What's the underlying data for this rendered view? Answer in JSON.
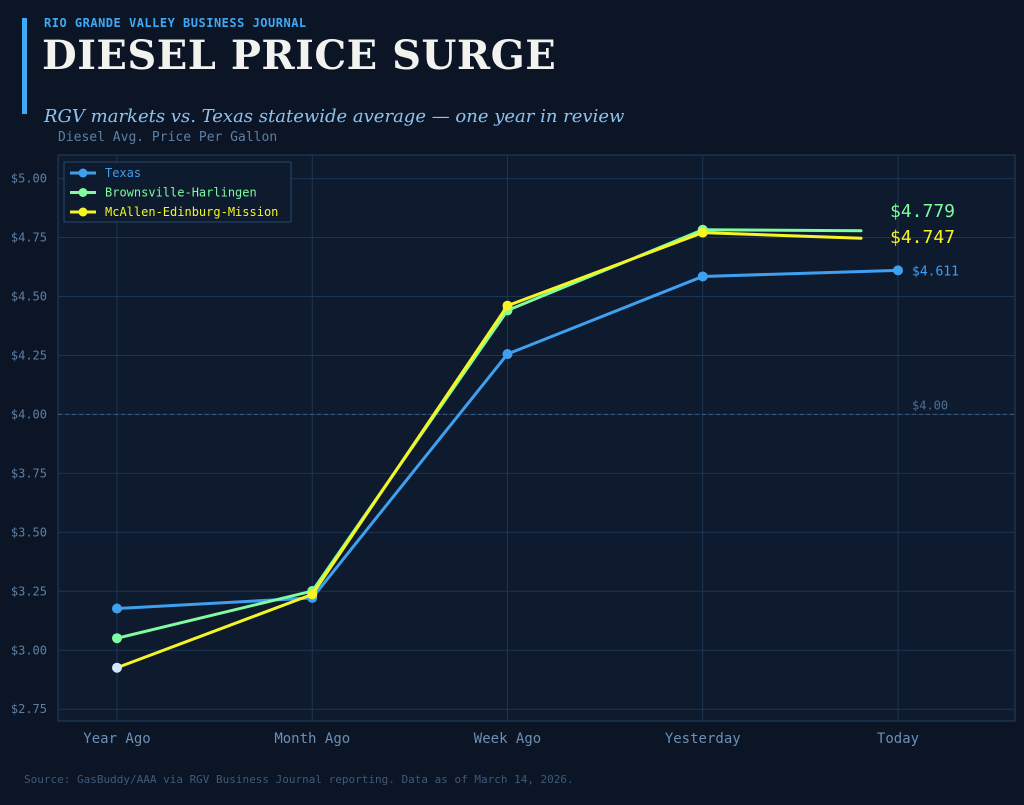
{
  "header": {
    "kicker": "RIO GRANDE VALLEY BUSINESS JOURNAL",
    "title": "DIESEL PRICE SURGE",
    "subtitle": "RGV markets vs. Texas statewide average — one year in review"
  },
  "footer": {
    "source": "Source: GasBuddy/AAA via RGV Business Journal reporting. Data as of March 14, 2026."
  },
  "colors": {
    "background": "#0b1526",
    "plot_bg": "#0e1a2d",
    "grid": "#1c3553",
    "texas": "#3fa0f0",
    "brownsville": "#7dfca0",
    "mcallen": "#f5f526",
    "first_point_mcallen": "#d4e8ff"
  },
  "chart_data": {
    "type": "line",
    "title": "DIESEL PRICE SURGE",
    "ylabel": "Diesel Avg. Price Per Gallon",
    "xlabel": "",
    "categories": [
      "Year Ago",
      "Month Ago",
      "Week Ago",
      "Yesterday",
      "Today"
    ],
    "ylim": [
      2.7,
      5.1
    ],
    "yticks": [
      2.75,
      3.0,
      3.25,
      3.5,
      3.75,
      4.0,
      4.25,
      4.5,
      4.75,
      5.0
    ],
    "ytick_labels": [
      "$2.75",
      "$3.00",
      "$3.25",
      "$3.50",
      "$3.75",
      "$4.00",
      "$4.25",
      "$4.50",
      "$4.75",
      "$5.00"
    ],
    "grid": true,
    "legend_position": "top-left",
    "reference_line": {
      "value": 4.0,
      "label": "$4.00"
    },
    "series": [
      {
        "name": "Texas",
        "values": [
          3.177,
          3.222,
          4.256,
          4.585,
          4.611
        ],
        "end_label": "$4.611"
      },
      {
        "name": "Brownsville-Harlingen",
        "values": [
          3.051,
          3.251,
          4.441,
          4.783,
          4.779
        ],
        "end_label": "$4.779"
      },
      {
        "name": "McAllen-Edinburg-Mission",
        "values": [
          2.926,
          3.237,
          4.461,
          4.771,
          4.747
        ],
        "end_label": "$4.747"
      }
    ]
  }
}
